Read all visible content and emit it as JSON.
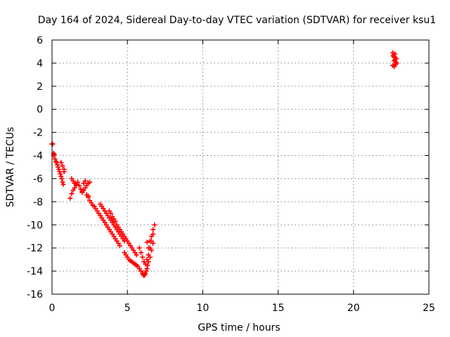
{
  "chart_data": {
    "type": "scatter",
    "title": "Day 164 of 2024, Sidereal Day-to-day VTEC variation (SDTVAR) for receiver ksu1",
    "xlabel": "GPS time / hours",
    "ylabel": "SDTVAR / TECUs",
    "xlim": [
      0,
      25
    ],
    "ylim": [
      -16,
      6
    ],
    "xticks": [
      0,
      5,
      10,
      15,
      20,
      25
    ],
    "yticks": [
      -16,
      -14,
      -12,
      -10,
      -8,
      -6,
      -4,
      -2,
      0,
      2,
      4,
      6
    ],
    "grid": true,
    "marker": "plus",
    "series": [
      {
        "name": "SDTVAR",
        "color": "#ff0000",
        "x": [
          0.0,
          0.05,
          0.1,
          0.1,
          0.15,
          0.2,
          0.25,
          0.3,
          0.35,
          0.4,
          0.45,
          0.5,
          0.55,
          0.6,
          0.65,
          0.7,
          0.75,
          0.8,
          0.6,
          0.7,
          0.8,
          1.2,
          1.3,
          1.4,
          1.5,
          1.6,
          1.7,
          1.3,
          1.4,
          1.5,
          1.6,
          1.8,
          1.9,
          2.0,
          2.1,
          2.2,
          2.3,
          2.4,
          2.5,
          2.3,
          2.4,
          2.2,
          2.1,
          2.0,
          2.4,
          2.5,
          2.6,
          2.7,
          2.8,
          2.9,
          3.0,
          3.1,
          3.2,
          3.3,
          3.4,
          3.5,
          3.6,
          3.7,
          3.8,
          3.9,
          4.0,
          4.1,
          4.2,
          4.3,
          4.4,
          4.5,
          3.2,
          3.3,
          3.4,
          3.5,
          3.6,
          3.7,
          3.8,
          3.9,
          4.0,
          4.1,
          4.2,
          4.3,
          4.4,
          4.5,
          4.6,
          4.7,
          4.8,
          3.8,
          3.9,
          4.0,
          4.1,
          4.2,
          4.3,
          4.4,
          4.5,
          4.6,
          4.7,
          4.8,
          4.9,
          5.0,
          5.1,
          5.2,
          5.3,
          5.4,
          5.5,
          5.6,
          4.8,
          4.9,
          5.0,
          5.1,
          5.2,
          5.3,
          5.4,
          5.5,
          5.6,
          5.7,
          5.8,
          5.9,
          6.0,
          6.05,
          6.1,
          6.15,
          6.2,
          6.25,
          6.3,
          6.35,
          6.4,
          5.8,
          5.9,
          6.0,
          6.1,
          6.2,
          6.3,
          6.4,
          6.5,
          6.6,
          6.7,
          6.8,
          6.3,
          6.4,
          6.5,
          6.6,
          6.7,
          6.5,
          6.6,
          6.7,
          22.6,
          22.65,
          22.7,
          22.75,
          22.8,
          22.85,
          22.6,
          22.7,
          22.8,
          22.65,
          22.75,
          22.85,
          22.7
        ],
        "y": [
          -3.0,
          -3.0,
          -3.8,
          -4.0,
          -3.9,
          -4.3,
          -4.5,
          -4.6,
          -4.8,
          -5.0,
          -5.2,
          -5.4,
          -5.6,
          -5.8,
          -6.0,
          -6.3,
          -6.5,
          -5.4,
          -4.6,
          -4.9,
          -5.2,
          -7.7,
          -7.3,
          -7.0,
          -6.8,
          -6.5,
          -6.3,
          -6.0,
          -6.2,
          -6.4,
          -6.6,
          -6.6,
          -6.9,
          -7.2,
          -7.0,
          -6.8,
          -6.6,
          -6.4,
          -6.3,
          -7.4,
          -7.6,
          -6.2,
          -6.4,
          -7.1,
          -7.5,
          -7.9,
          -8.1,
          -8.3,
          -8.4,
          -8.6,
          -8.8,
          -9.0,
          -9.2,
          -9.4,
          -9.6,
          -9.8,
          -10.0,
          -10.2,
          -10.4,
          -10.6,
          -10.8,
          -11.0,
          -11.2,
          -11.4,
          -11.6,
          -11.8,
          -8.2,
          -8.4,
          -8.6,
          -8.8,
          -9.0,
          -9.2,
          -9.4,
          -9.6,
          -9.8,
          -10.0,
          -10.2,
          -10.4,
          -10.6,
          -10.8,
          -11.0,
          -11.2,
          -11.4,
          -8.8,
          -9.0,
          -9.3,
          -9.5,
          -9.7,
          -10.0,
          -10.2,
          -10.4,
          -10.6,
          -10.8,
          -11.0,
          -11.2,
          -11.4,
          -11.6,
          -11.8,
          -12.0,
          -12.2,
          -12.4,
          -12.6,
          -12.4,
          -12.6,
          -12.8,
          -13.0,
          -13.1,
          -13.2,
          -13.3,
          -13.4,
          -13.5,
          -13.6,
          -13.8,
          -14.0,
          -14.2,
          -14.3,
          -14.4,
          -14.3,
          -14.2,
          -14.0,
          -13.8,
          -13.5,
          -13.2,
          -12.0,
          -12.4,
          -12.8,
          -13.2,
          -13.4,
          -13.0,
          -12.6,
          -12.0,
          -11.4,
          -10.8,
          -10.0,
          -11.5,
          -12.0,
          -11.4,
          -11.0,
          -10.4,
          -12.8,
          -12.2,
          -11.6,
          4.9,
          4.7,
          4.5,
          4.3,
          4.1,
          4.0,
          3.8,
          3.7,
          3.9,
          4.6,
          4.8,
          4.4,
          4.2
        ]
      }
    ]
  }
}
